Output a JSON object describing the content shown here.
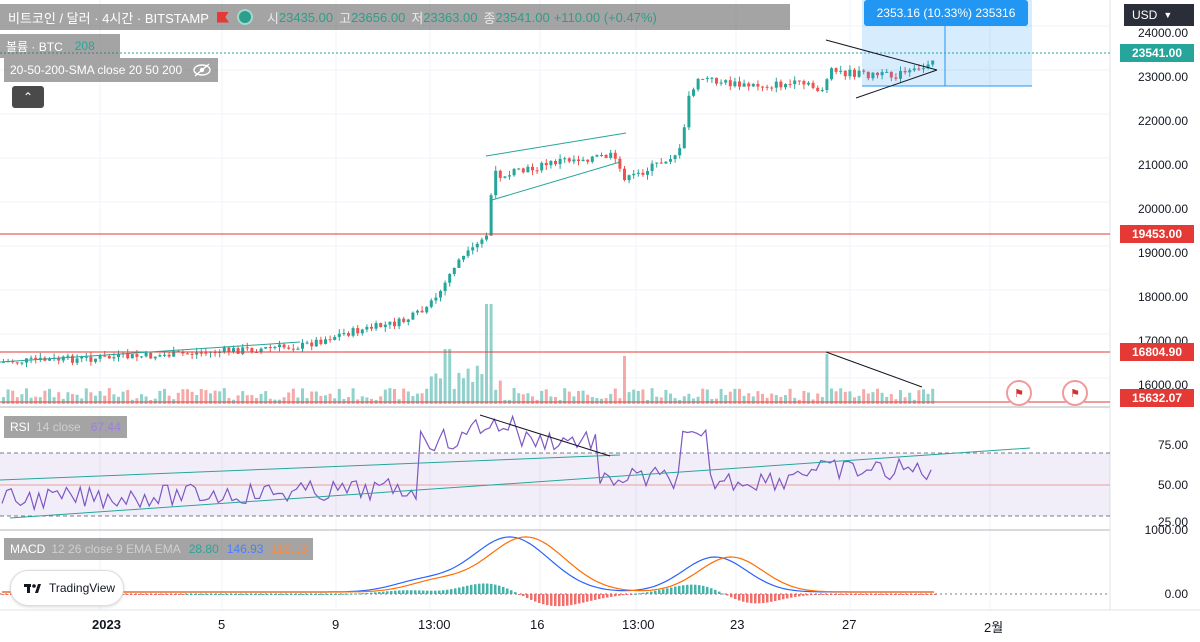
{
  "header": {
    "symbol": "비트코인 / 달러 · 4시간 · BITSTAMP",
    "open_label": "시",
    "open": "23435.00",
    "high_label": "고",
    "high": "23656.00",
    "low_label": "저",
    "low": "23363.00",
    "close_label": "종",
    "close": "23541.00",
    "change": "+110.00 (+0.47%)"
  },
  "volume_legend": {
    "label": "볼륨 · BTC",
    "value": "208"
  },
  "sma_legend": {
    "label": "20-50-200-SMA close 20 50 200"
  },
  "measure": {
    "text": "2353.16 (10.33%) 235316"
  },
  "currency": "USD",
  "price_axis": {
    "ticks": [
      "24000.00",
      "23000.00",
      "22000.00",
      "21000.00",
      "20000.00",
      "19000.00",
      "18000.00",
      "17000.00",
      "16000.00"
    ],
    "current_price": "23541.00",
    "level_1": "19453.00",
    "level_2": "16804.90",
    "level_3": "15632.07"
  },
  "rsi": {
    "label": "RSI",
    "params": "14 close",
    "value": "67.44",
    "ticks": [
      "75.00",
      "50.00",
      "25.00"
    ]
  },
  "macd": {
    "label": "MACD",
    "params": "12 26 close 9 EMA EMA",
    "macd_value": "28.80",
    "signal_value": "146.93",
    "hist_value": "118.13",
    "ticks": [
      "1000.00",
      "0.00"
    ]
  },
  "time_axis": [
    "2023",
    "5",
    "9",
    "13:00",
    "16",
    "13:00",
    "23",
    "27",
    "2월"
  ],
  "tradingview_label": "TradingView",
  "colors": {
    "up": "#26a69a",
    "down": "#ef5350",
    "rsi": "#7e57c2",
    "macd": "#2962ff",
    "signal": "#ff6d00",
    "level": "#e53935"
  },
  "icons": {
    "collapse": "chevron-up-icon",
    "visibility": "eye-off-icon",
    "event": "us-flag-icon"
  }
}
